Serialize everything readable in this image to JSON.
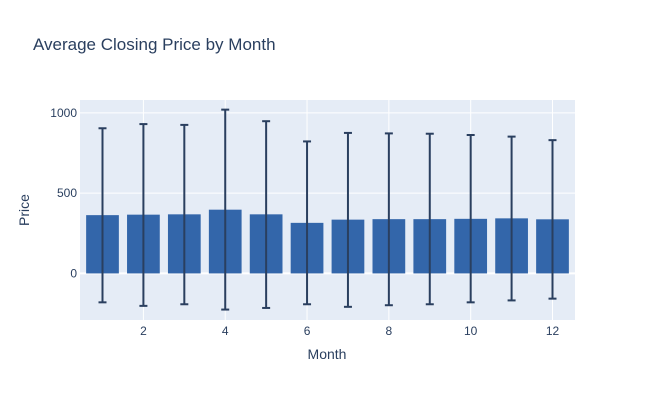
{
  "chart_data": {
    "type": "bar",
    "title": "Average Closing Price by Month",
    "xlabel": "Month",
    "ylabel": "Price",
    "x": [
      1,
      2,
      3,
      4,
      5,
      6,
      7,
      8,
      9,
      10,
      11,
      12
    ],
    "values": [
      363,
      366,
      368,
      397,
      368,
      315,
      335,
      338,
      338,
      340,
      343,
      337
    ],
    "error_upper": [
      904,
      930,
      925,
      1020,
      948,
      822,
      875,
      872,
      870,
      862,
      852,
      830
    ],
    "error_lower": [
      -180,
      -202,
      -192,
      -225,
      -215,
      -192,
      -208,
      -198,
      -192,
      -180,
      -168,
      -157
    ],
    "xlim": [
      0.45,
      12.55
    ],
    "ylim": [
      -290,
      1080
    ],
    "x_ticks": [
      "2",
      "4",
      "6",
      "8",
      "10",
      "12"
    ],
    "y_ticks": [
      "0",
      "500",
      "1000"
    ],
    "grid": true,
    "colors": {
      "bar": "#3366aa",
      "error_bar": "#2a3f5f",
      "plot_bg": "#e5ecf6",
      "grid": "#ffffff",
      "text": "#2a3f5f"
    }
  }
}
